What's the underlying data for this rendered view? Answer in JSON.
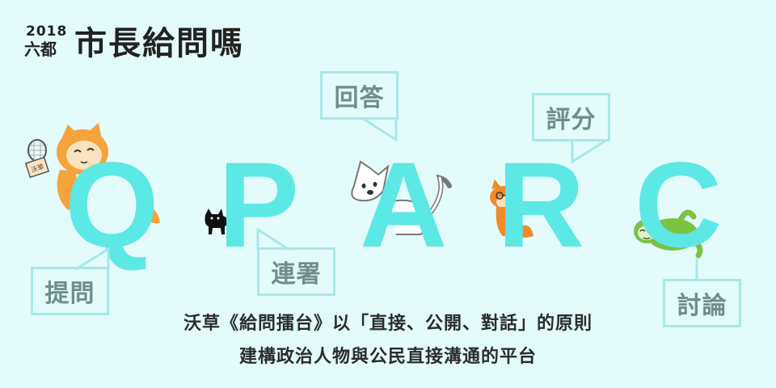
{
  "title": {
    "year": "2018",
    "region": "六都",
    "main": "市長給問嗎"
  },
  "letters": {
    "q": "Q",
    "p": "P",
    "a": "A",
    "r": "R",
    "c": "C"
  },
  "bubbles": {
    "tiwen": "提問",
    "lianshu": "連署",
    "huida": "回答",
    "pingfen": "評分",
    "taolun": "討論"
  },
  "illustrations": {
    "mascot_sign": "沃草"
  },
  "description": {
    "line1": "沃草《給問擂台》以「直接、公開、對話」的原則",
    "line2": "建構政治人物與公民直接溝通的平台"
  },
  "colors": {
    "background": "#e4fbfb",
    "letter": "#5ce8e4",
    "bubble_border": "#a6e8ea",
    "bubble_text": "#6f8d8f"
  }
}
